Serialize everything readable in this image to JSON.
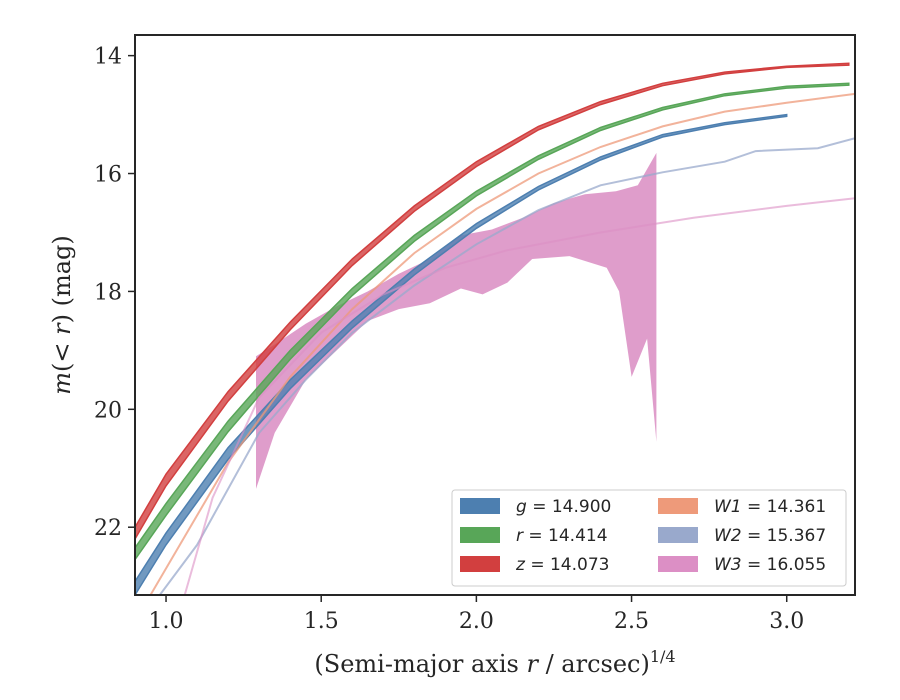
{
  "chart_data": {
    "type": "line",
    "xlabel": "(Semi-major axis r / arcsec)",
    "xlabel_parts": {
      "pre": "(Semi-major axis ",
      "var": "r",
      "post": " / arcsec)",
      "exponent": "1/4"
    },
    "ylabel": "m(< r) (mag)",
    "ylabel_parts": {
      "var": "m",
      "inner": "(< ",
      "ivar": "r",
      "close": ")",
      "unit": " (mag)"
    },
    "xlim": [
      0.9,
      3.22
    ],
    "ylim": [
      23.15,
      13.65
    ],
    "y_inverted": true,
    "xticks": [
      "1.0",
      "1.5",
      "2.0",
      "2.5",
      "3.0"
    ],
    "xtick_values": [
      1.0,
      1.5,
      2.0,
      2.5,
      3.0
    ],
    "yticks": [
      "14",
      "16",
      "18",
      "20",
      "22"
    ],
    "ytick_values": [
      14,
      16,
      18,
      20,
      22
    ],
    "grid": false,
    "legend_position": "lower-right",
    "series": [
      {
        "name": "g = 14.900",
        "band": "g",
        "mag": "14.900",
        "color": "#4d7fb0",
        "kind": "band",
        "upper": [
          [
            0.9,
            22.92
          ],
          [
            1.0,
            22.1
          ],
          [
            1.2,
            20.65
          ],
          [
            1.4,
            19.5
          ],
          [
            1.6,
            18.5
          ],
          [
            1.8,
            17.62
          ],
          [
            2.0,
            16.85
          ],
          [
            2.2,
            16.22
          ],
          [
            2.4,
            15.72
          ],
          [
            2.6,
            15.34
          ],
          [
            2.8,
            15.14
          ],
          [
            3.0,
            15.0
          ]
        ],
        "lower": [
          [
            0.9,
            23.15
          ],
          [
            1.0,
            22.3
          ],
          [
            1.2,
            20.85
          ],
          [
            1.4,
            19.65
          ],
          [
            1.6,
            18.62
          ],
          [
            1.8,
            17.72
          ],
          [
            2.0,
            16.93
          ],
          [
            2.2,
            16.28
          ],
          [
            2.4,
            15.77
          ],
          [
            2.6,
            15.38
          ],
          [
            2.8,
            15.17
          ],
          [
            3.0,
            15.03
          ]
        ]
      },
      {
        "name": "r = 14.414",
        "band": "r",
        "mag": "14.414",
        "color": "#58a658",
        "kind": "band",
        "upper": [
          [
            0.9,
            22.35
          ],
          [
            1.0,
            21.6
          ],
          [
            1.2,
            20.2
          ],
          [
            1.4,
            19.0
          ],
          [
            1.6,
            17.95
          ],
          [
            1.8,
            17.05
          ],
          [
            2.0,
            16.3
          ],
          [
            2.2,
            15.7
          ],
          [
            2.4,
            15.22
          ],
          [
            2.6,
            14.88
          ],
          [
            2.8,
            14.65
          ],
          [
            3.0,
            14.52
          ],
          [
            3.2,
            14.47
          ]
        ],
        "lower": [
          [
            0.9,
            22.55
          ],
          [
            1.0,
            21.8
          ],
          [
            1.2,
            20.38
          ],
          [
            1.4,
            19.15
          ],
          [
            1.6,
            18.07
          ],
          [
            1.8,
            17.15
          ],
          [
            2.0,
            16.38
          ],
          [
            2.2,
            15.76
          ],
          [
            2.4,
            15.27
          ],
          [
            2.6,
            14.92
          ],
          [
            2.8,
            14.68
          ],
          [
            3.0,
            14.55
          ],
          [
            3.2,
            14.5
          ]
        ]
      },
      {
        "name": "z = 14.073",
        "band": "z",
        "mag": "14.073",
        "color": "#d23f3f",
        "kind": "band",
        "upper": [
          [
            0.9,
            22.0
          ],
          [
            1.0,
            21.1
          ],
          [
            1.2,
            19.7
          ],
          [
            1.4,
            18.52
          ],
          [
            1.6,
            17.45
          ],
          [
            1.8,
            16.55
          ],
          [
            2.0,
            15.8
          ],
          [
            2.2,
            15.2
          ],
          [
            2.4,
            14.78
          ],
          [
            2.6,
            14.47
          ],
          [
            2.8,
            14.28
          ],
          [
            3.0,
            14.18
          ],
          [
            3.2,
            14.13
          ]
        ],
        "lower": [
          [
            0.9,
            22.2
          ],
          [
            1.0,
            21.3
          ],
          [
            1.2,
            19.86
          ],
          [
            1.4,
            18.65
          ],
          [
            1.6,
            17.56
          ],
          [
            1.8,
            16.64
          ],
          [
            2.0,
            15.88
          ],
          [
            2.2,
            15.26
          ],
          [
            2.4,
            14.83
          ],
          [
            2.6,
            14.51
          ],
          [
            2.8,
            14.31
          ],
          [
            3.0,
            14.2
          ],
          [
            3.2,
            14.16
          ]
        ]
      },
      {
        "name": "W1 = 14.361",
        "band": "W1",
        "mag": "14.361",
        "color": "#ee9a7a",
        "kind": "line",
        "points": [
          [
            0.95,
            23.15
          ],
          [
            1.0,
            22.7
          ],
          [
            1.1,
            21.8
          ],
          [
            1.2,
            20.9
          ],
          [
            1.4,
            19.45
          ],
          [
            1.6,
            18.3
          ],
          [
            1.8,
            17.35
          ],
          [
            2.0,
            16.6
          ],
          [
            2.2,
            16.0
          ],
          [
            2.4,
            15.55
          ],
          [
            2.6,
            15.2
          ],
          [
            2.8,
            14.95
          ],
          [
            3.0,
            14.8
          ],
          [
            3.22,
            14.65
          ]
        ]
      },
      {
        "name": "W2 = 15.367",
        "band": "W2",
        "mag": "15.367",
        "color": "#99a9cc",
        "kind": "line",
        "points": [
          [
            0.98,
            23.15
          ],
          [
            1.1,
            22.3
          ],
          [
            1.3,
            20.4
          ],
          [
            1.45,
            19.5
          ],
          [
            1.6,
            18.7
          ],
          [
            1.8,
            17.9
          ],
          [
            2.0,
            17.2
          ],
          [
            2.2,
            16.62
          ],
          [
            2.4,
            16.2
          ],
          [
            2.6,
            15.98
          ],
          [
            2.8,
            15.8
          ],
          [
            2.9,
            15.62
          ],
          [
            3.1,
            15.57
          ],
          [
            3.22,
            15.4
          ]
        ]
      },
      {
        "name": "W3 = 16.055",
        "band": "W3",
        "mag": "16.055",
        "color": "#dc8fc5",
        "kind": "line",
        "points": [
          [
            1.06,
            23.15
          ],
          [
            1.15,
            21.5
          ],
          [
            1.3,
            19.8
          ],
          [
            1.5,
            18.7
          ],
          [
            1.7,
            18.05
          ],
          [
            1.9,
            17.6
          ],
          [
            2.1,
            17.3
          ],
          [
            2.4,
            17.0
          ],
          [
            2.7,
            16.75
          ],
          [
            3.0,
            16.55
          ],
          [
            3.22,
            16.42
          ]
        ]
      },
      {
        "name": "W3 band",
        "band": "W3",
        "color": "#d98cc2",
        "kind": "fill",
        "upper": [
          [
            1.29,
            19.1
          ],
          [
            1.35,
            18.9
          ],
          [
            1.45,
            18.55
          ],
          [
            1.55,
            18.25
          ],
          [
            1.65,
            18.0
          ],
          [
            1.75,
            17.7
          ],
          [
            1.85,
            17.45
          ],
          [
            1.95,
            17.05
          ],
          [
            2.05,
            16.95
          ],
          [
            2.15,
            16.75
          ],
          [
            2.25,
            16.5
          ],
          [
            2.35,
            16.35
          ],
          [
            2.45,
            16.3
          ],
          [
            2.52,
            16.2
          ],
          [
            2.58,
            15.65
          ]
        ],
        "lower": [
          [
            1.29,
            21.35
          ],
          [
            1.35,
            20.4
          ],
          [
            1.45,
            19.5
          ],
          [
            1.55,
            19.0
          ],
          [
            1.65,
            18.5
          ],
          [
            1.75,
            18.3
          ],
          [
            1.85,
            18.2
          ],
          [
            1.95,
            17.95
          ],
          [
            2.02,
            18.05
          ],
          [
            2.1,
            17.85
          ],
          [
            2.18,
            17.45
          ],
          [
            2.3,
            17.4
          ],
          [
            2.42,
            17.6
          ],
          [
            2.46,
            18.0
          ],
          [
            2.5,
            19.45
          ],
          [
            2.55,
            18.8
          ],
          [
            2.58,
            20.55
          ]
        ]
      }
    ],
    "legend_entries": [
      {
        "var": "g",
        "value": " = 14.900",
        "color": "#4d7fb0"
      },
      {
        "var": "W1",
        "value": " = 14.361",
        "color": "#ee9a7a"
      },
      {
        "var": "r",
        "value": " = 14.414",
        "color": "#58a658"
      },
      {
        "var": "W2",
        "value": " = 15.367",
        "color": "#99a9cc"
      },
      {
        "var": "z",
        "value": " = 14.073",
        "color": "#d23f3f"
      },
      {
        "var": "W3",
        "value": " = 16.055",
        "color": "#dc8fc5"
      }
    ]
  }
}
